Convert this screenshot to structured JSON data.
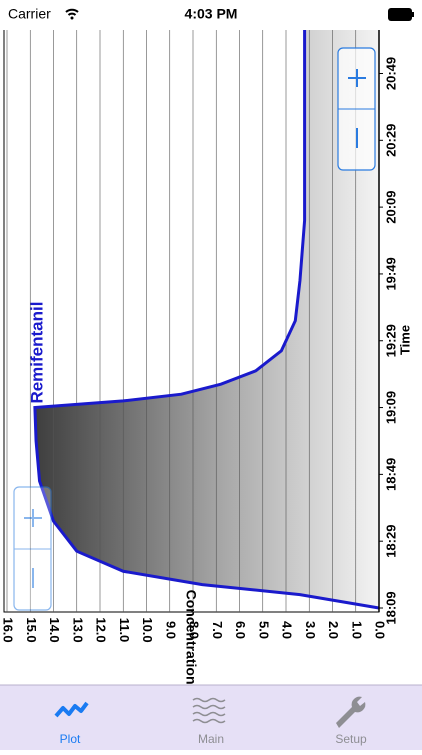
{
  "status_bar": {
    "carrier": "Carrier",
    "time": "4:03 PM"
  },
  "chart_data": {
    "type": "line",
    "x_label": "Time",
    "y_label": "Concentration: ng/ml",
    "x": [
      0,
      4,
      7,
      11,
      17,
      26,
      38,
      50,
      60,
      62,
      64,
      67,
      71,
      77,
      86,
      98,
      116,
      182
    ],
    "series": [
      {
        "name": "Remifentanil",
        "color": "#1a1acc",
        "values": [
          0,
          3.4,
          7.6,
          11,
          13,
          14,
          14.6,
          14.75,
          14.8,
          11,
          8.5,
          6.8,
          5.3,
          4.2,
          3.6,
          3.4,
          3.2,
          3.2
        ]
      }
    ],
    "xlim": [
      0,
      182
    ],
    "xticks": [
      {
        "value": 0,
        "label": "18:09"
      },
      {
        "value": 20,
        "label": "18:29"
      },
      {
        "value": 40,
        "label": "18:49"
      },
      {
        "value": 60,
        "label": "19:09"
      },
      {
        "value": 80,
        "label": "19:29"
      },
      {
        "value": 100,
        "label": "19:49"
      },
      {
        "value": 120,
        "label": "20:09"
      },
      {
        "value": 140,
        "label": "20:29"
      },
      {
        "value": 160,
        "label": "20:49"
      }
    ],
    "ylim": [
      0,
      16
    ],
    "yticks": [
      {
        "value": 0,
        "label": "0.0"
      },
      {
        "value": 1,
        "label": "1.0"
      },
      {
        "value": 2,
        "label": "2.0"
      },
      {
        "value": 3,
        "label": "3.0"
      },
      {
        "value": 4,
        "label": "4.0"
      },
      {
        "value": 5,
        "label": "5.0"
      },
      {
        "value": 6,
        "label": "6.0"
      },
      {
        "value": 7,
        "label": "7.0"
      },
      {
        "value": 8,
        "label": "8.0"
      },
      {
        "value": 9,
        "label": "9.0"
      },
      {
        "value": 10,
        "label": "10.0"
      },
      {
        "value": 11,
        "label": "11.0"
      },
      {
        "value": 12,
        "label": "12.0"
      },
      {
        "value": 13,
        "label": "13.0"
      },
      {
        "value": 14,
        "label": "14.0"
      },
      {
        "value": 15,
        "label": "15.0"
      },
      {
        "value": 16,
        "label": "16.0"
      }
    ],
    "grid": true
  },
  "tab_bar": {
    "tabs": [
      "Plot",
      "Main",
      "Setup"
    ]
  }
}
